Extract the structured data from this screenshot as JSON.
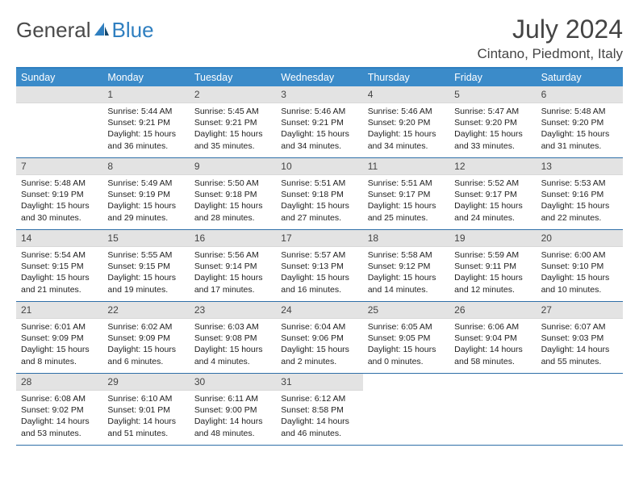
{
  "brand": {
    "part1": "General",
    "part2": "Blue"
  },
  "title": "July 2024",
  "location": "Cintano, Piedmont, Italy",
  "colors": {
    "header_bar": "#3b8bc9",
    "accent_line": "#2f7fc0",
    "daynum_bg": "#e3e3e3",
    "text": "#333333"
  },
  "days_of_week": [
    "Sunday",
    "Monday",
    "Tuesday",
    "Wednesday",
    "Thursday",
    "Friday",
    "Saturday"
  ],
  "weeks": [
    [
      null,
      {
        "n": "1",
        "sr": "5:44 AM",
        "ss": "9:21 PM",
        "dl": "15 hours and 36 minutes."
      },
      {
        "n": "2",
        "sr": "5:45 AM",
        "ss": "9:21 PM",
        "dl": "15 hours and 35 minutes."
      },
      {
        "n": "3",
        "sr": "5:46 AM",
        "ss": "9:21 PM",
        "dl": "15 hours and 34 minutes."
      },
      {
        "n": "4",
        "sr": "5:46 AM",
        "ss": "9:20 PM",
        "dl": "15 hours and 34 minutes."
      },
      {
        "n": "5",
        "sr": "5:47 AM",
        "ss": "9:20 PM",
        "dl": "15 hours and 33 minutes."
      },
      {
        "n": "6",
        "sr": "5:48 AM",
        "ss": "9:20 PM",
        "dl": "15 hours and 31 minutes."
      }
    ],
    [
      {
        "n": "7",
        "sr": "5:48 AM",
        "ss": "9:19 PM",
        "dl": "15 hours and 30 minutes."
      },
      {
        "n": "8",
        "sr": "5:49 AM",
        "ss": "9:19 PM",
        "dl": "15 hours and 29 minutes."
      },
      {
        "n": "9",
        "sr": "5:50 AM",
        "ss": "9:18 PM",
        "dl": "15 hours and 28 minutes."
      },
      {
        "n": "10",
        "sr": "5:51 AM",
        "ss": "9:18 PM",
        "dl": "15 hours and 27 minutes."
      },
      {
        "n": "11",
        "sr": "5:51 AM",
        "ss": "9:17 PM",
        "dl": "15 hours and 25 minutes."
      },
      {
        "n": "12",
        "sr": "5:52 AM",
        "ss": "9:17 PM",
        "dl": "15 hours and 24 minutes."
      },
      {
        "n": "13",
        "sr": "5:53 AM",
        "ss": "9:16 PM",
        "dl": "15 hours and 22 minutes."
      }
    ],
    [
      {
        "n": "14",
        "sr": "5:54 AM",
        "ss": "9:15 PM",
        "dl": "15 hours and 21 minutes."
      },
      {
        "n": "15",
        "sr": "5:55 AM",
        "ss": "9:15 PM",
        "dl": "15 hours and 19 minutes."
      },
      {
        "n": "16",
        "sr": "5:56 AM",
        "ss": "9:14 PM",
        "dl": "15 hours and 17 minutes."
      },
      {
        "n": "17",
        "sr": "5:57 AM",
        "ss": "9:13 PM",
        "dl": "15 hours and 16 minutes."
      },
      {
        "n": "18",
        "sr": "5:58 AM",
        "ss": "9:12 PM",
        "dl": "15 hours and 14 minutes."
      },
      {
        "n": "19",
        "sr": "5:59 AM",
        "ss": "9:11 PM",
        "dl": "15 hours and 12 minutes."
      },
      {
        "n": "20",
        "sr": "6:00 AM",
        "ss": "9:10 PM",
        "dl": "15 hours and 10 minutes."
      }
    ],
    [
      {
        "n": "21",
        "sr": "6:01 AM",
        "ss": "9:09 PM",
        "dl": "15 hours and 8 minutes."
      },
      {
        "n": "22",
        "sr": "6:02 AM",
        "ss": "9:09 PM",
        "dl": "15 hours and 6 minutes."
      },
      {
        "n": "23",
        "sr": "6:03 AM",
        "ss": "9:08 PM",
        "dl": "15 hours and 4 minutes."
      },
      {
        "n": "24",
        "sr": "6:04 AM",
        "ss": "9:06 PM",
        "dl": "15 hours and 2 minutes."
      },
      {
        "n": "25",
        "sr": "6:05 AM",
        "ss": "9:05 PM",
        "dl": "15 hours and 0 minutes."
      },
      {
        "n": "26",
        "sr": "6:06 AM",
        "ss": "9:04 PM",
        "dl": "14 hours and 58 minutes."
      },
      {
        "n": "27",
        "sr": "6:07 AM",
        "ss": "9:03 PM",
        "dl": "14 hours and 55 minutes."
      }
    ],
    [
      {
        "n": "28",
        "sr": "6:08 AM",
        "ss": "9:02 PM",
        "dl": "14 hours and 53 minutes."
      },
      {
        "n": "29",
        "sr": "6:10 AM",
        "ss": "9:01 PM",
        "dl": "14 hours and 51 minutes."
      },
      {
        "n": "30",
        "sr": "6:11 AM",
        "ss": "9:00 PM",
        "dl": "14 hours and 48 minutes."
      },
      {
        "n": "31",
        "sr": "6:12 AM",
        "ss": "8:58 PM",
        "dl": "14 hours and 46 minutes."
      },
      null,
      null,
      null
    ]
  ],
  "labels": {
    "sunrise": "Sunrise:",
    "sunset": "Sunset:",
    "daylight": "Daylight:"
  }
}
